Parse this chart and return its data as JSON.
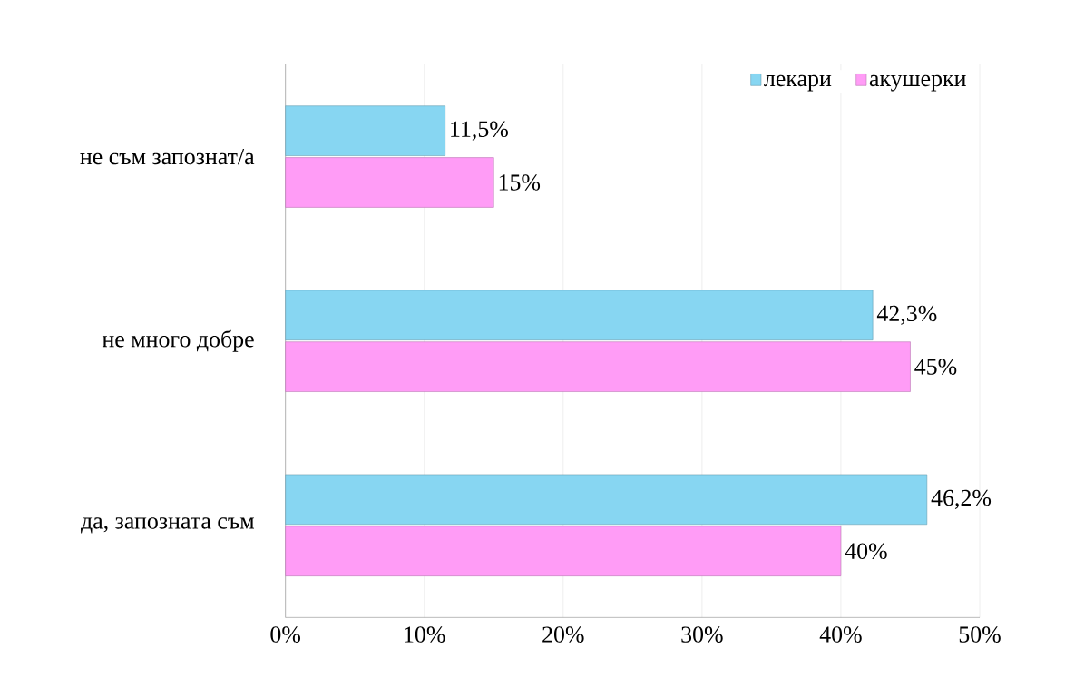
{
  "chart_data": {
    "type": "bar",
    "orientation": "horizontal",
    "categories": [
      "не съм запознат/а",
      "не много добре",
      "да, запозната съм"
    ],
    "series": [
      {
        "name": "лекари",
        "color": "#87d6f2",
        "values": [
          11.5,
          42.3,
          46.2
        ],
        "value_labels": [
          "11,5%",
          "42,3%",
          "46,2%"
        ]
      },
      {
        "name": "акушерки",
        "color": "#ff9cf6",
        "values": [
          15,
          45,
          40
        ],
        "value_labels": [
          "15%",
          "45%",
          "40%"
        ]
      }
    ],
    "xlim": [
      0,
      50
    ],
    "xticks": [
      {
        "value": 0,
        "label": "0%"
      },
      {
        "value": 10,
        "label": "10%"
      },
      {
        "value": 20,
        "label": "20%"
      },
      {
        "value": 30,
        "label": "30%"
      },
      {
        "value": 40,
        "label": "40%"
      },
      {
        "value": 50,
        "label": "50%"
      }
    ],
    "grid": "x",
    "legend": "top right"
  }
}
